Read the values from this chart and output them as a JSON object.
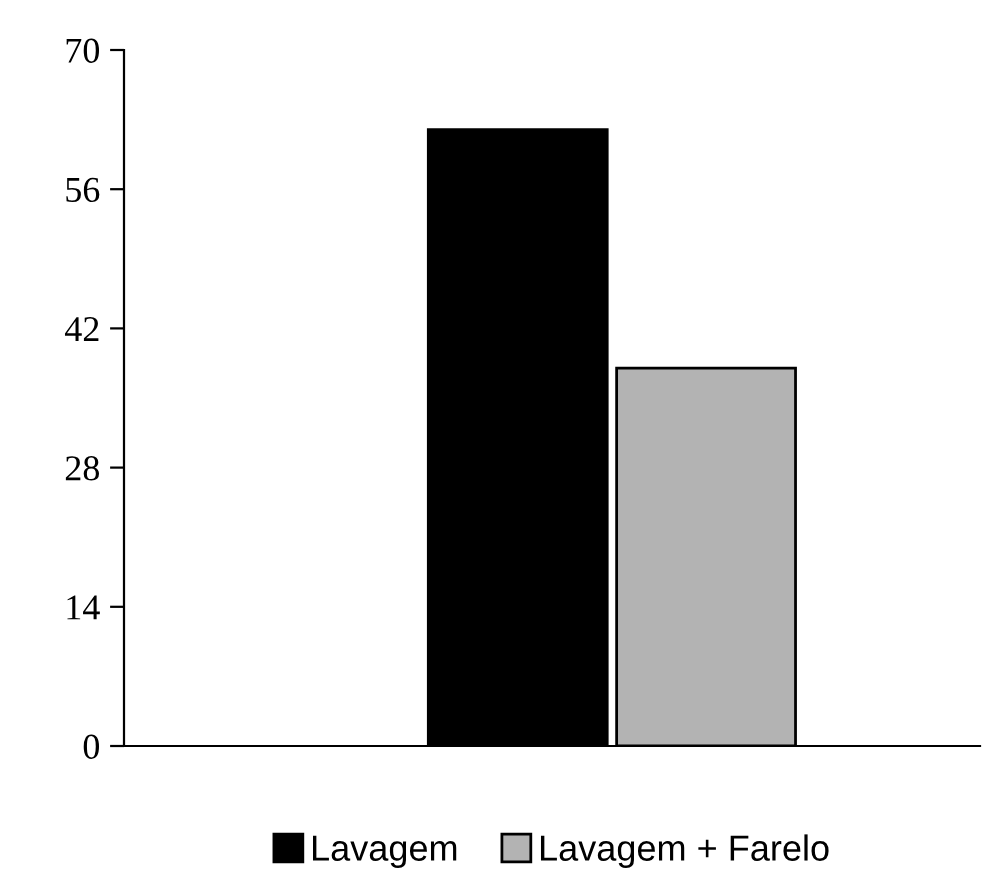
{
  "chart_data": {
    "type": "bar",
    "categories": [
      null
    ],
    "series": [
      {
        "name": "Lavagem",
        "color": "#000000",
        "values": [
          62
        ]
      },
      {
        "name": "Lavagem + Farelo",
        "color": "#b3b3b3",
        "values": [
          38
        ]
      }
    ],
    "ylim": [
      0,
      70
    ],
    "yticks": [
      0,
      14,
      28,
      42,
      56,
      70
    ],
    "legend": "bottom"
  }
}
